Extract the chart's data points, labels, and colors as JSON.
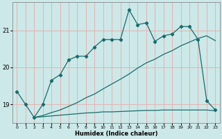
{
  "xlabel": "Humidex (Indice chaleur)",
  "background_color": "#cce8e8",
  "grid_color": "#e8aaaa",
  "line_color": "#1a6b6b",
  "xlim": [
    -0.5,
    23.5
  ],
  "ylim": [
    18.5,
    21.75
  ],
  "yticks": [
    19,
    20,
    21
  ],
  "xticks": [
    0,
    1,
    2,
    3,
    4,
    5,
    6,
    7,
    8,
    9,
    10,
    11,
    12,
    13,
    14,
    15,
    16,
    17,
    18,
    19,
    20,
    21,
    22,
    23
  ],
  "line1_x": [
    0,
    1,
    2,
    3,
    4,
    5,
    6,
    7,
    8,
    9,
    10,
    11,
    12,
    13,
    14,
    15,
    16,
    17,
    18,
    19,
    20,
    21,
    22,
    23
  ],
  "line1_y": [
    19.35,
    19.0,
    18.65,
    19.0,
    19.65,
    19.8,
    20.2,
    20.3,
    20.3,
    20.55,
    20.75,
    20.75,
    20.75,
    21.55,
    21.15,
    21.2,
    20.7,
    20.85,
    20.9,
    21.1,
    21.1,
    20.75,
    19.1,
    18.85
  ],
  "line2_x": [
    2,
    3,
    4,
    5,
    6,
    7,
    8,
    9,
    10,
    11,
    12,
    13,
    14,
    15,
    16,
    17,
    18,
    19,
    20,
    21,
    22,
    23
  ],
  "line2_y": [
    18.65,
    18.7,
    18.78,
    18.85,
    18.95,
    19.05,
    19.18,
    19.28,
    19.42,
    19.55,
    19.68,
    19.82,
    19.98,
    20.12,
    20.22,
    20.35,
    20.45,
    20.58,
    20.68,
    20.78,
    20.85,
    20.72
  ],
  "line3_x": [
    2,
    3,
    4,
    5,
    6,
    7,
    8,
    9,
    10,
    11,
    12,
    13,
    14,
    15,
    16,
    17,
    18,
    19,
    20,
    21,
    22,
    23
  ],
  "line3_y": [
    18.65,
    18.67,
    18.69,
    18.71,
    18.73,
    18.75,
    18.77,
    18.78,
    18.8,
    18.8,
    18.81,
    18.82,
    18.83,
    18.84,
    18.84,
    18.85,
    18.85,
    18.85,
    18.85,
    18.85,
    18.85,
    18.83
  ]
}
